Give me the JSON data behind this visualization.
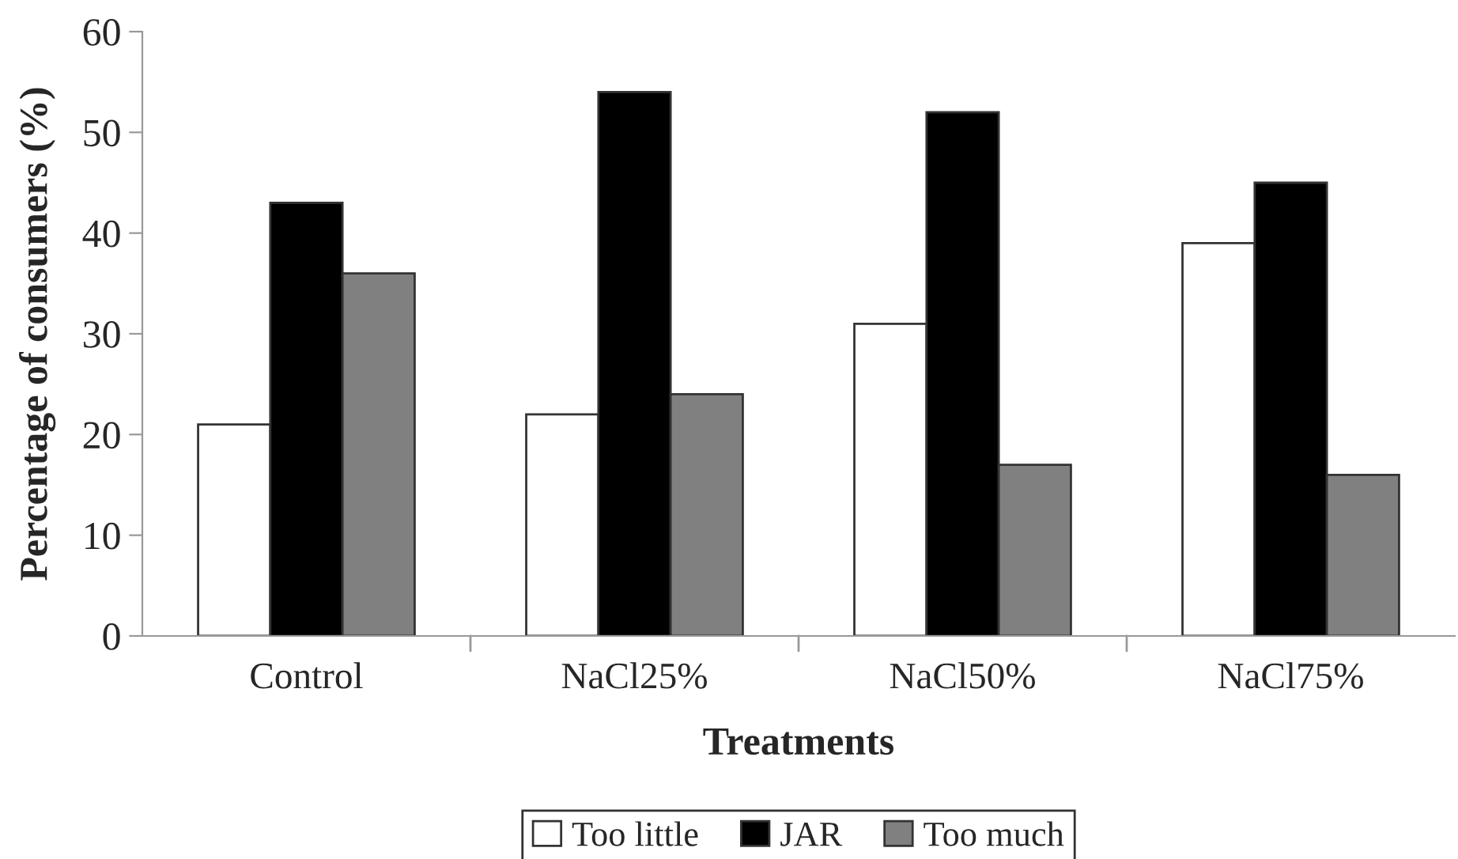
{
  "chart_data": {
    "type": "bar",
    "xlabel": "Treatments",
    "ylabel": "Percentage of consumers (%)",
    "categories": [
      "Control",
      "NaCl25%",
      "NaCl50%",
      "NaCl75%"
    ],
    "series": [
      {
        "name": "Too little",
        "color": "#ffffff",
        "values": [
          21,
          22,
          31,
          39
        ]
      },
      {
        "name": "JAR",
        "color": "#000000",
        "values": [
          43,
          54,
          52,
          45
        ]
      },
      {
        "name": "Too much",
        "color": "#808080",
        "values": [
          36,
          24,
          17,
          16
        ]
      }
    ],
    "ylim": [
      0,
      60
    ],
    "yticks": [
      0,
      10,
      20,
      30,
      40,
      50,
      60
    ],
    "grid": false,
    "legend": "bottom"
  }
}
